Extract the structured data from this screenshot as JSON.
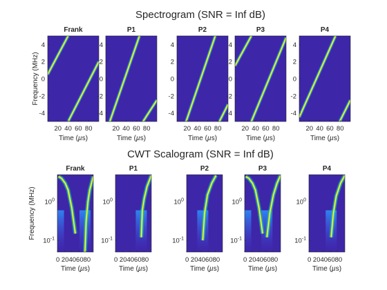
{
  "figure": {
    "colormap": [
      "#3e26a8",
      "#4743e0",
      "#2d8ef8",
      "#14b6c9",
      "#62cb81",
      "#e0b93a",
      "#f9fb15"
    ]
  },
  "chart_data": [
    {
      "type": "heatmap",
      "title": "Spectrogram (SNR = Inf dB)",
      "xlabel": "Time (µs)",
      "ylabel": "Frequency (MHz)",
      "xlim": [
        0,
        100
      ],
      "ylim": [
        -5,
        5
      ],
      "xticks": [
        20,
        40,
        60,
        80
      ],
      "yticks": [
        -4,
        -2,
        0,
        2,
        4
      ],
      "yscale": "linear",
      "panels": [
        {
          "title": "Frank",
          "ridges": [
            [
              [
                0,
                0.5
              ],
              [
                40,
                5
              ]
            ],
            [
              [
                40,
                -5
              ],
              [
                100,
                2
              ]
            ]
          ]
        },
        {
          "title": "P1",
          "ridges": [
            [
              [
                8,
                -5
              ],
              [
                66,
                5
              ]
            ],
            [
              [
                73,
                -5
              ],
              [
                100,
                -2.5
              ]
            ]
          ]
        },
        {
          "title": "P2",
          "ridges": [
            [
              [
                18,
                -5
              ],
              [
                75,
                5
              ]
            ],
            [
              [
                83,
                -5
              ],
              [
                100,
                -3
              ]
            ]
          ]
        },
        {
          "title": "P3",
          "ridges": [
            [
              [
                0,
                1.5
              ],
              [
                32,
                5
              ]
            ],
            [
              [
                32,
                -5
              ],
              [
                100,
                4.8
              ]
            ]
          ]
        },
        {
          "title": "P4",
          "ridges": [
            [
              [
                0,
                -4.5
              ],
              [
                71,
                5
              ]
            ],
            [
              [
                79,
                -5
              ],
              [
                100,
                -2.5
              ]
            ]
          ]
        }
      ]
    },
    {
      "type": "heatmap",
      "title": "CWT Scalogram (SNR = Inf dB)",
      "xlabel": "Time (µs)",
      "ylabel": "Frequency (MHz)",
      "xlim": [
        0,
        100
      ],
      "ylim": [
        0.05,
        5
      ],
      "xticks": [
        0,
        20,
        40,
        60,
        80
      ],
      "xticklabels": [
        "0",
        "20",
        "40",
        "60",
        "80"
      ],
      "yticks": [
        1,
        0.1
      ],
      "yscale": "log",
      "panels": [
        {
          "title": "Frank",
          "ridges": [
            [
              [
                3,
                4.5
              ],
              [
                12,
                4
              ],
              [
                22,
                3
              ],
              [
                30,
                2
              ],
              [
                40,
                0.7
              ],
              [
                50,
                0.15
              ]
            ],
            [
              [
                77,
                0.05
              ],
              [
                80,
                0.3
              ],
              [
                85,
                1
              ],
              [
                90,
                2
              ],
              [
                100,
                4.5
              ]
            ]
          ]
        },
        {
          "title": "P1",
          "ridges": [
            [
              [
                72,
                0.12
              ],
              [
                75,
                0.6
              ],
              [
                80,
                1.2
              ],
              [
                88,
                2.5
              ],
              [
                100,
                4.8
              ]
            ]
          ]
        },
        {
          "title": "P2",
          "ridges": [
            [
              [
                45,
                0.1
              ],
              [
                50,
                0.5
              ],
              [
                58,
                1.5
              ],
              [
                70,
                3
              ],
              [
                82,
                4.8
              ]
            ]
          ]
        },
        {
          "title": "P3",
          "ridges": [
            [
              [
                3,
                4.5
              ],
              [
                12,
                4
              ],
              [
                22,
                3
              ],
              [
                30,
                2
              ],
              [
                40,
                0.7
              ],
              [
                50,
                0.15
              ]
            ],
            [
              [
                62,
                0.12
              ],
              [
                70,
                0.5
              ],
              [
                80,
                1.5
              ],
              [
                90,
                3
              ],
              [
                100,
                4.8
              ]
            ]
          ]
        },
        {
          "title": "P4",
          "ridges": [
            [
              [
                62,
                0.12
              ],
              [
                68,
                0.5
              ],
              [
                76,
                1.4
              ],
              [
                88,
                3
              ],
              [
                100,
                4.8
              ]
            ]
          ]
        }
      ]
    }
  ]
}
